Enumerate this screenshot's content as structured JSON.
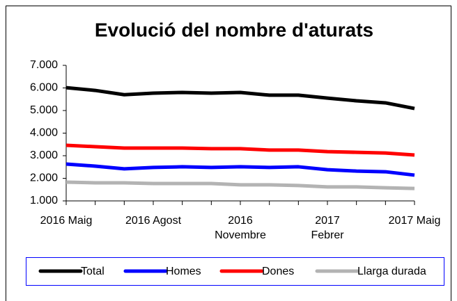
{
  "chart_data": {
    "type": "line",
    "title": "Evolució del nombre d'aturats",
    "categories": [
      "2016 Maig",
      null,
      null,
      "2016 Agost",
      null,
      null,
      "2016\nNovembre",
      null,
      null,
      "2017\nFebrer",
      null,
      null,
      "2017 Maig"
    ],
    "series": [
      {
        "name": "Total",
        "color": "#000000",
        "values": [
          6010,
          5890,
          5700,
          5770,
          5800,
          5770,
          5800,
          5680,
          5680,
          5550,
          5430,
          5340,
          5090
        ]
      },
      {
        "name": "Homes",
        "color": "#0000ff",
        "values": [
          2630,
          2540,
          2420,
          2480,
          2510,
          2480,
          2510,
          2480,
          2510,
          2380,
          2320,
          2290,
          2140
        ]
      },
      {
        "name": "Dones",
        "color": "#ff0000",
        "values": [
          3460,
          3400,
          3340,
          3340,
          3340,
          3310,
          3310,
          3250,
          3250,
          3180,
          3150,
          3120,
          3030
        ]
      },
      {
        "name": "Llarga durada",
        "color": "#b3b3b3",
        "values": [
          1830,
          1800,
          1800,
          1770,
          1770,
          1770,
          1710,
          1710,
          1680,
          1620,
          1620,
          1580,
          1550
        ]
      }
    ],
    "ylim": [
      1000,
      7000
    ],
    "yticks": [
      {
        "value": 1000,
        "label": "1.000"
      },
      {
        "value": 2000,
        "label": "2.000"
      },
      {
        "value": 3000,
        "label": "3.000"
      },
      {
        "value": 4000,
        "label": "4.000"
      },
      {
        "value": 5000,
        "label": "5.000"
      },
      {
        "value": 6000,
        "label": "6.000"
      },
      {
        "value": 7000,
        "label": "7.000"
      }
    ],
    "grid": false,
    "legend": "bottom"
  }
}
